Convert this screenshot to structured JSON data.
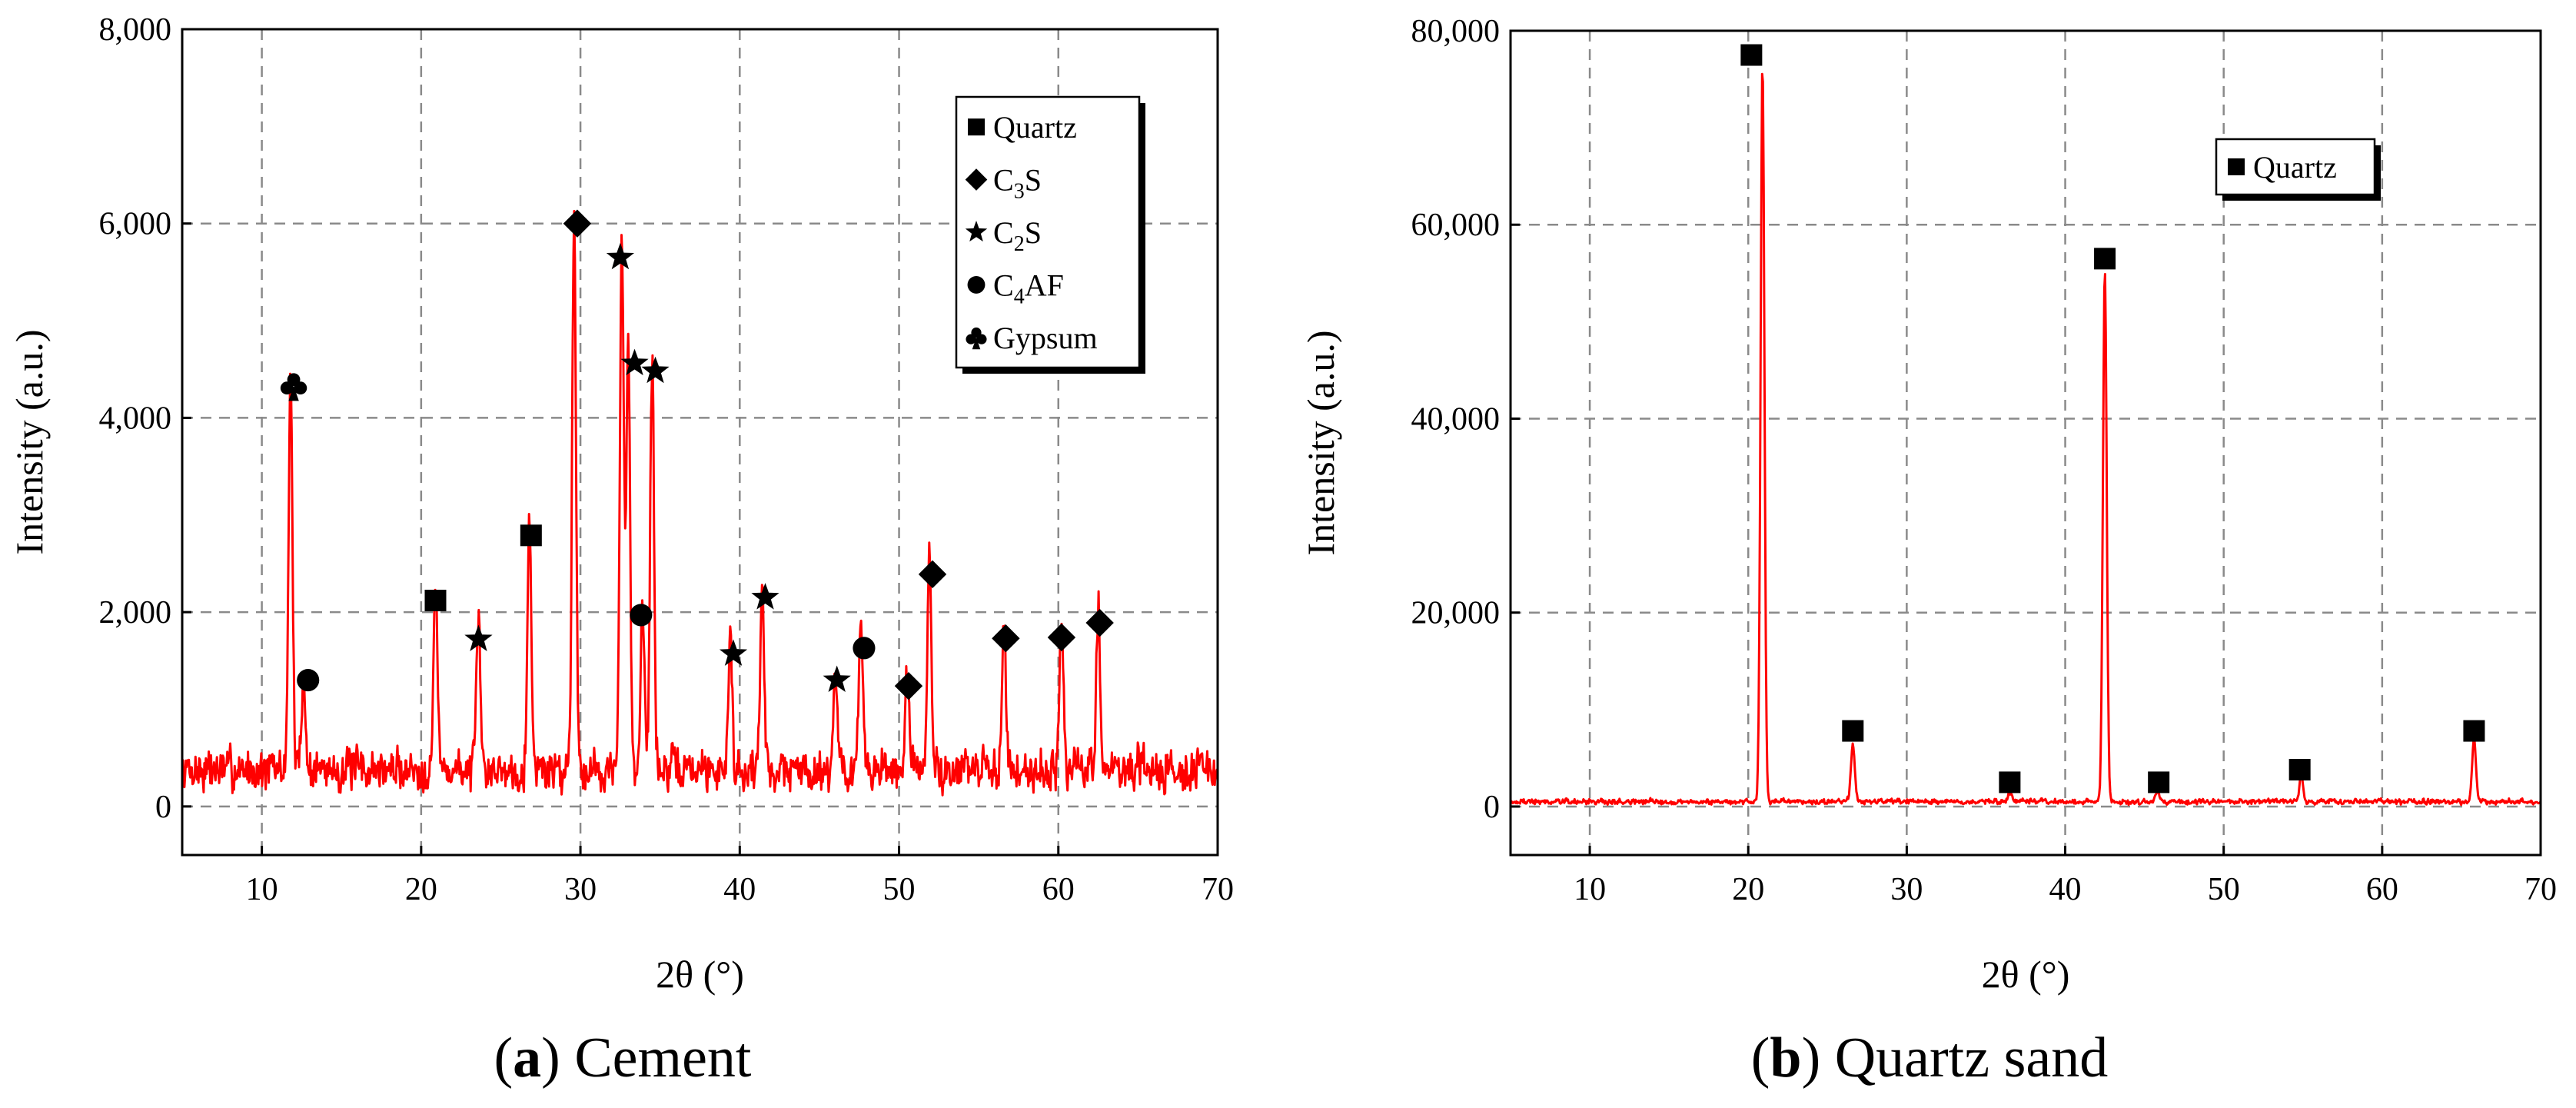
{
  "colors": {
    "trace": "#ff0000",
    "grid": "#8a8a8a",
    "axis": "#000000"
  },
  "chart_data": [
    {
      "type": "line",
      "caption": {
        "letter": "a",
        "title": "Cement"
      },
      "xlabel": "2θ (°)",
      "ylabel": "Intensity (a.u.)",
      "xlim": [
        5,
        70
      ],
      "ylim": [
        -500,
        8000
      ],
      "xticks": [
        10,
        20,
        30,
        40,
        50,
        60,
        70
      ],
      "yticks": [
        0,
        2000,
        4000,
        6000,
        8000
      ],
      "ytick_labels": [
        "0",
        "2,000",
        "4,000",
        "6,000",
        "8,000"
      ],
      "grid": true,
      "legend_position": "top-right",
      "legend": [
        {
          "marker": "square",
          "label": "Quartz",
          "base": "Quartz",
          "sub": "",
          "tail": ""
        },
        {
          "marker": "diamond",
          "label": "C3S",
          "base": "C",
          "sub": "3",
          "tail": "S"
        },
        {
          "marker": "star",
          "label": "C2S",
          "base": "C",
          "sub": "2",
          "tail": "S"
        },
        {
          "marker": "circle",
          "label": "C4AF",
          "base": "C",
          "sub": "4",
          "tail": "AF"
        },
        {
          "marker": "club",
          "label": "Gypsum",
          "base": "Gypsum",
          "sub": "",
          "tail": ""
        }
      ],
      "noise": {
        "base": 380,
        "amplitude": 230,
        "seed": 7
      },
      "peaks": [
        {
          "x": 11.8,
          "y": 4100
        },
        {
          "x": 12.6,
          "y": 950
        },
        {
          "x": 20.9,
          "y": 1950
        },
        {
          "x": 23.6,
          "y": 1500
        },
        {
          "x": 26.8,
          "y": 2600
        },
        {
          "x": 29.6,
          "y": 5800
        },
        {
          "x": 32.6,
          "y": 5450
        },
        {
          "x": 33.0,
          "y": 4350
        },
        {
          "x": 33.9,
          "y": 1800
        },
        {
          "x": 34.5,
          "y": 4250
        },
        {
          "x": 39.4,
          "y": 1380
        },
        {
          "x": 41.4,
          "y": 1950
        },
        {
          "x": 46.0,
          "y": 1100
        },
        {
          "x": 47.6,
          "y": 1450
        },
        {
          "x": 50.5,
          "y": 1000
        },
        {
          "x": 51.9,
          "y": 2200
        },
        {
          "x": 56.6,
          "y": 1500
        },
        {
          "x": 60.2,
          "y": 1550
        },
        {
          "x": 62.5,
          "y": 1700
        }
      ],
      "markers": [
        {
          "type": "club",
          "x": 12.0,
          "y": 4330
        },
        {
          "type": "circle",
          "x": 12.9,
          "y": 1300
        },
        {
          "type": "square",
          "x": 20.9,
          "y": 2120
        },
        {
          "type": "star",
          "x": 23.6,
          "y": 1720
        },
        {
          "type": "square",
          "x": 26.9,
          "y": 2790
        },
        {
          "type": "diamond",
          "x": 29.8,
          "y": 6000
        },
        {
          "type": "star",
          "x": 32.5,
          "y": 5650
        },
        {
          "type": "star",
          "x": 33.4,
          "y": 4560
        },
        {
          "type": "star",
          "x": 34.7,
          "y": 4480
        },
        {
          "type": "circle",
          "x": 33.8,
          "y": 1970
        },
        {
          "type": "star",
          "x": 39.6,
          "y": 1570
        },
        {
          "type": "star",
          "x": 41.6,
          "y": 2150
        },
        {
          "type": "star",
          "x": 46.1,
          "y": 1300
        },
        {
          "type": "circle",
          "x": 47.8,
          "y": 1630
        },
        {
          "type": "diamond",
          "x": 50.6,
          "y": 1240
        },
        {
          "type": "diamond",
          "x": 52.1,
          "y": 2390
        },
        {
          "type": "diamond",
          "x": 56.7,
          "y": 1730
        },
        {
          "type": "diamond",
          "x": 60.2,
          "y": 1740
        },
        {
          "type": "diamond",
          "x": 62.6,
          "y": 1890
        }
      ]
    },
    {
      "type": "line",
      "caption": {
        "letter": "b",
        "title": "Quartz sand"
      },
      "xlabel": "2θ (°)",
      "ylabel": "Intensity (a.u.)",
      "xlim": [
        5,
        70
      ],
      "ylim": [
        -5000,
        80000
      ],
      "xticks": [
        10,
        20,
        30,
        40,
        50,
        60,
        70
      ],
      "yticks": [
        0,
        20000,
        40000,
        60000,
        80000
      ],
      "ytick_labels": [
        "0",
        "20,000",
        "40,000",
        "60,000",
        "80,000"
      ],
      "grid": true,
      "legend_position": "top-right",
      "legend": [
        {
          "marker": "square",
          "label": "Quartz",
          "base": "Quartz",
          "sub": "",
          "tail": ""
        }
      ],
      "noise": {
        "base": 500,
        "amplitude": 300,
        "seed": 19
      },
      "peaks": [
        {
          "x": 20.9,
          "y": 76000
        },
        {
          "x": 26.6,
          "y": 6000
        },
        {
          "x": 36.5,
          "y": 900
        },
        {
          "x": 42.5,
          "y": 55000
        },
        {
          "x": 45.8,
          "y": 1200
        },
        {
          "x": 54.9,
          "y": 2600
        },
        {
          "x": 65.8,
          "y": 6500
        }
      ],
      "markers": [
        {
          "type": "square",
          "x": 20.2,
          "y": 77500
        },
        {
          "type": "square",
          "x": 26.6,
          "y": 7800
        },
        {
          "type": "square",
          "x": 36.5,
          "y": 2500
        },
        {
          "type": "square",
          "x": 42.5,
          "y": 56500
        },
        {
          "type": "square",
          "x": 45.9,
          "y": 2500
        },
        {
          "type": "square",
          "x": 54.8,
          "y": 3800
        },
        {
          "type": "square",
          "x": 65.8,
          "y": 7800
        }
      ]
    }
  ]
}
